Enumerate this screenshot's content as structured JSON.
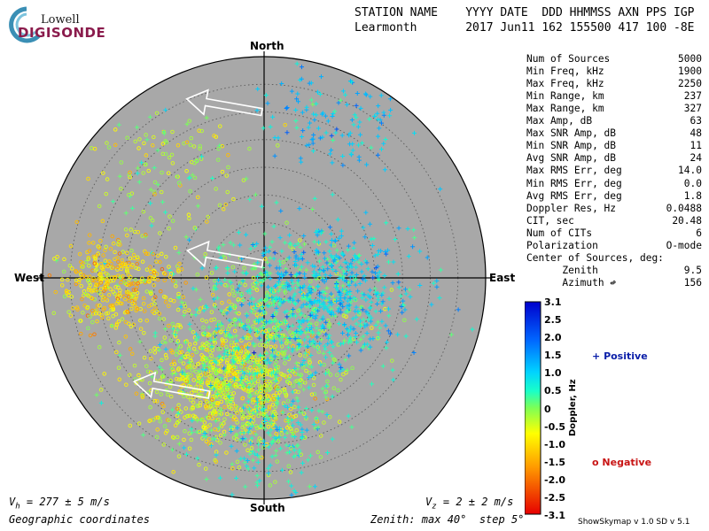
{
  "logo": {
    "line1": "Lowell",
    "line2": "DIGISONDE"
  },
  "header": {
    "labels": "STATION NAME    YYYY DATE  DDD HHMMSS AXN PPS IGP",
    "values": "Learmonth       2017 Jun11 162 155500 417 100 -8E"
  },
  "compass": {
    "north": "North",
    "south": "South",
    "east": "East",
    "west": "West"
  },
  "stats": [
    {
      "label": "Num of Sources",
      "value": "5000"
    },
    {
      "label": "Min Freq, kHz",
      "value": "1900"
    },
    {
      "label": "Max Freq, kHz",
      "value": "2250"
    },
    {
      "label": "Min Range, km",
      "value": "237"
    },
    {
      "label": "Max Range, km",
      "value": "327"
    },
    {
      "label": "Max Amp, dB",
      "value": "63"
    },
    {
      "label": "Max SNR Amp, dB",
      "value": "48"
    },
    {
      "label": "Min SNR Amp, dB",
      "value": "11"
    },
    {
      "label": "Avg SNR Amp, dB",
      "value": "24"
    },
    {
      "label": "Max RMS Err, deg",
      "value": "14.0"
    },
    {
      "label": "Min RMS Err, deg",
      "value": "0.0"
    },
    {
      "label": "Avg RMS Err, deg",
      "value": "1.8"
    },
    {
      "label": "Doppler Res, Hz",
      "value": "0.0488"
    },
    {
      "label": "CIT, sec",
      "value": "20.48"
    },
    {
      "label": "Num of CITs",
      "value": "6"
    },
    {
      "label": "Polarization",
      "value": "O-mode"
    },
    {
      "label": "Center of Sources, deg:",
      "value": ""
    },
    {
      "label": "      Zenith",
      "value": "9.5"
    },
    {
      "label": "      Azimuth ↫",
      "value": "156"
    }
  ],
  "colorbar": {
    "title": "Doppler, Hz",
    "ticks": [
      "3.1",
      "2.5",
      "2.0",
      "1.5",
      "1.0",
      "0.5",
      "0",
      "-0.5",
      "-1.0",
      "-1.5",
      "-2.0",
      "-2.5",
      "-3.1"
    ],
    "range": [
      -3.1,
      3.1
    ]
  },
  "legend": {
    "positive": "Positive",
    "negative": "Negative",
    "positive_marker": "+",
    "negative_marker": "o"
  },
  "footer": {
    "vh_symbol": "V",
    "vh_sub": "h",
    "vh_value": " = 277 ± 5 m/s",
    "vz_symbol": "V",
    "vz_sub": "z",
    "vz_value": " = 2 ± 2 m/s",
    "coords": "Geographic coordinates",
    "zenith": "Zenith: max 40°  step 5°",
    "credit": "ShowSkymap v 1.0   SD v 5.1"
  },
  "chart_data": {
    "type": "scatter",
    "projection": "polar zenith/azimuth sky map",
    "zenith_max_deg": 40,
    "zenith_step_deg": 5,
    "grid": true,
    "num_sources": 5000,
    "clusters": [
      {
        "name": "south-southwest core",
        "zenith_deg": 20,
        "azimuth_deg": 200,
        "spread_deg": 6,
        "doppler_hz": -0.6,
        "count": 1000
      },
      {
        "name": "central",
        "zenith_deg": 8,
        "azimuth_deg": 170,
        "spread_deg": 7,
        "doppler_hz": 0.3,
        "count": 700
      },
      {
        "name": "east arm",
        "zenith_deg": 12,
        "azimuth_deg": 100,
        "spread_deg": 6,
        "doppler_hz": 1.0,
        "count": 500
      },
      {
        "name": "west band",
        "zenith_deg": 27,
        "azimuth_deg": 268,
        "spread_deg": 4,
        "doppler_hz": -1.0,
        "count": 400
      },
      {
        "name": "north-northeast",
        "zenith_deg": 33,
        "azimuth_deg": 25,
        "spread_deg": 5,
        "doppler_hz": 1.1,
        "count": 140
      },
      {
        "name": "northwest scatter",
        "zenith_deg": 28,
        "azimuth_deg": 320,
        "spread_deg": 6,
        "doppler_hz": -0.3,
        "count": 150
      },
      {
        "name": "south scatter",
        "zenith_deg": 30,
        "azimuth_deg": 178,
        "spread_deg": 5,
        "doppler_hz": 0.5,
        "count": 210
      }
    ],
    "arrows": [
      {
        "zenith_deg": 32,
        "azimuth_deg": 347,
        "direction": "west"
      },
      {
        "zenith_deg": 8,
        "azimuth_deg": 298,
        "direction": "west"
      },
      {
        "zenith_deg": 26,
        "azimuth_deg": 220,
        "direction": "west"
      }
    ],
    "legend_placement": "right"
  }
}
